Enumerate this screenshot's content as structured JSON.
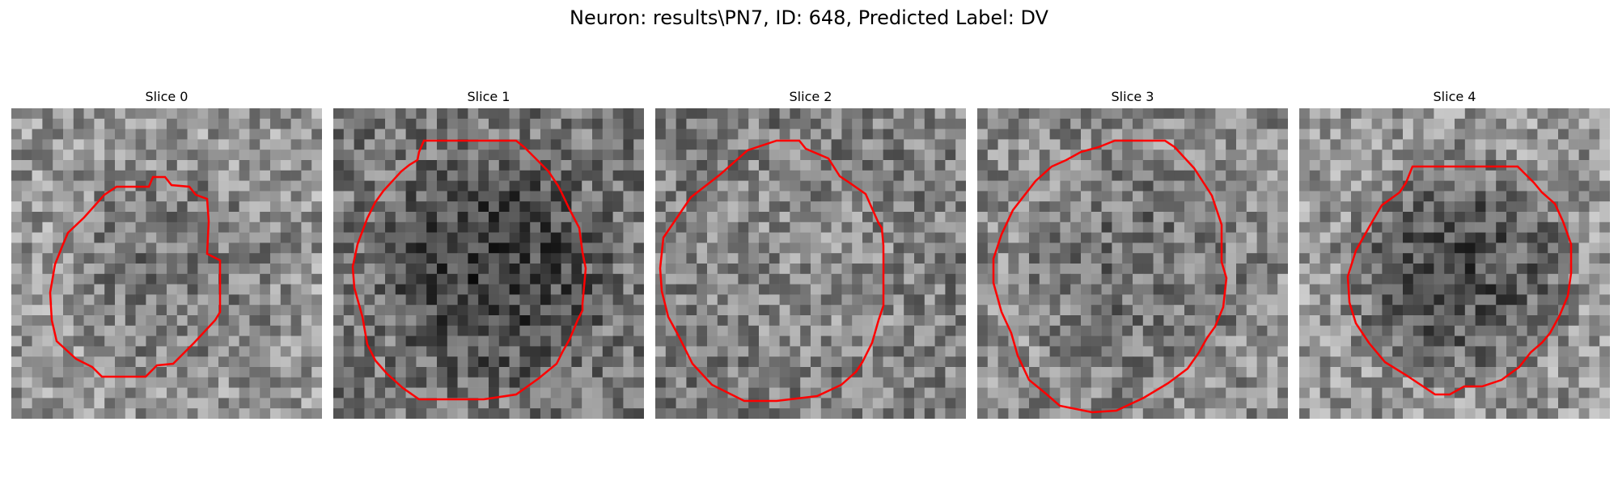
{
  "figure": {
    "title": "Neuron: results\\PN7, ID: 648, Predicted Label: DV"
  },
  "colors": {
    "contour": "#ff0000",
    "background": "#ffffff"
  },
  "panels": [
    {
      "title": "Slice 0",
      "seed": 11,
      "base_gray": 150,
      "center_gray": 118,
      "contour": [
        [
          175,
          85
        ],
        [
          190,
          85
        ],
        [
          198,
          95
        ],
        [
          220,
          97
        ],
        [
          228,
          107
        ],
        [
          242,
          112
        ],
        [
          244,
          140
        ],
        [
          242,
          180
        ],
        [
          258,
          188
        ],
        [
          258,
          252
        ],
        [
          252,
          262
        ],
        [
          226,
          290
        ],
        [
          200,
          316
        ],
        [
          180,
          318
        ],
        [
          166,
          332
        ],
        [
          132,
          332
        ],
        [
          112,
          332
        ],
        [
          100,
          320
        ],
        [
          80,
          310
        ],
        [
          56,
          288
        ],
        [
          50,
          262
        ],
        [
          48,
          228
        ],
        [
          54,
          193
        ],
        [
          64,
          168
        ],
        [
          70,
          154
        ],
        [
          90,
          135
        ],
        [
          115,
          107
        ],
        [
          130,
          97
        ],
        [
          170,
          97
        ]
      ]
    },
    {
      "title": "Slice 1",
      "seed": 23,
      "base_gray": 118,
      "center_gray": 62,
      "contour": [
        [
          112,
          40
        ],
        [
          226,
          40
        ],
        [
          236,
          48
        ],
        [
          256,
          68
        ],
        [
          266,
          78
        ],
        [
          278,
          96
        ],
        [
          282,
          104
        ],
        [
          292,
          125
        ],
        [
          304,
          148
        ],
        [
          308,
          178
        ],
        [
          312,
          198
        ],
        [
          308,
          242
        ],
        [
          308,
          250
        ],
        [
          302,
          262
        ],
        [
          292,
          286
        ],
        [
          284,
          300
        ],
        [
          276,
          316
        ],
        [
          254,
          334
        ],
        [
          226,
          354
        ],
        [
          186,
          360
        ],
        [
          146,
          360
        ],
        [
          106,
          360
        ],
        [
          86,
          346
        ],
        [
          66,
          328
        ],
        [
          52,
          312
        ],
        [
          42,
          292
        ],
        [
          36,
          258
        ],
        [
          26,
          222
        ],
        [
          24,
          196
        ],
        [
          30,
          168
        ],
        [
          42,
          136
        ],
        [
          52,
          116
        ],
        [
          62,
          102
        ],
        [
          84,
          78
        ],
        [
          94,
          70
        ],
        [
          104,
          64
        ],
        [
          106,
          54
        ]
      ]
    },
    {
      "title": "Slice 2",
      "seed": 37,
      "base_gray": 126,
      "center_gray": 140,
      "contour": [
        [
          150,
          40
        ],
        [
          178,
          40
        ],
        [
          186,
          50
        ],
        [
          214,
          62
        ],
        [
          228,
          84
        ],
        [
          240,
          92
        ],
        [
          260,
          106
        ],
        [
          276,
          142
        ],
        [
          280,
          148
        ],
        [
          282,
          170
        ],
        [
          282,
          210
        ],
        [
          282,
          244
        ],
        [
          276,
          262
        ],
        [
          268,
          290
        ],
        [
          256,
          314
        ],
        [
          248,
          326
        ],
        [
          230,
          342
        ],
        [
          200,
          356
        ],
        [
          150,
          362
        ],
        [
          110,
          362
        ],
        [
          70,
          342
        ],
        [
          46,
          316
        ],
        [
          28,
          280
        ],
        [
          16,
          258
        ],
        [
          8,
          226
        ],
        [
          6,
          198
        ],
        [
          10,
          160
        ],
        [
          44,
          110
        ],
        [
          80,
          82
        ],
        [
          114,
          52
        ]
      ]
    },
    {
      "title": "Slice 3",
      "seed": 49,
      "base_gray": 140,
      "center_gray": 112,
      "contour": [
        [
          170,
          40
        ],
        [
          232,
          40
        ],
        [
          244,
          48
        ],
        [
          268,
          74
        ],
        [
          290,
          108
        ],
        [
          294,
          120
        ],
        [
          302,
          144
        ],
        [
          302,
          190
        ],
        [
          308,
          210
        ],
        [
          304,
          246
        ],
        [
          294,
          270
        ],
        [
          284,
          284
        ],
        [
          274,
          302
        ],
        [
          260,
          322
        ],
        [
          236,
          340
        ],
        [
          206,
          358
        ],
        [
          172,
          374
        ],
        [
          142,
          376
        ],
        [
          102,
          368
        ],
        [
          86,
          354
        ],
        [
          64,
          336
        ],
        [
          50,
          306
        ],
        [
          42,
          278
        ],
        [
          30,
          252
        ],
        [
          20,
          216
        ],
        [
          20,
          186
        ],
        [
          30,
          156
        ],
        [
          44,
          126
        ],
        [
          72,
          90
        ],
        [
          92,
          72
        ],
        [
          110,
          64
        ],
        [
          128,
          54
        ],
        [
          150,
          48
        ]
      ]
    },
    {
      "title": "Slice 4",
      "seed": 61,
      "base_gray": 150,
      "center_gray": 78,
      "contour": [
        [
          140,
          72
        ],
        [
          270,
          72
        ],
        [
          278,
          80
        ],
        [
          290,
          92
        ],
        [
          300,
          104
        ],
        [
          316,
          118
        ],
        [
          326,
          140
        ],
        [
          336,
          168
        ],
        [
          336,
          204
        ],
        [
          332,
          232
        ],
        [
          322,
          256
        ],
        [
          310,
          278
        ],
        [
          300,
          290
        ],
        [
          286,
          302
        ],
        [
          272,
          320
        ],
        [
          250,
          336
        ],
        [
          226,
          344
        ],
        [
          204,
          344
        ],
        [
          186,
          354
        ],
        [
          168,
          354
        ],
        [
          150,
          342
        ],
        [
          132,
          330
        ],
        [
          106,
          314
        ],
        [
          86,
          290
        ],
        [
          70,
          266
        ],
        [
          62,
          240
        ],
        [
          60,
          208
        ],
        [
          70,
          176
        ],
        [
          88,
          144
        ],
        [
          102,
          120
        ],
        [
          124,
          104
        ],
        [
          132,
          92
        ]
      ]
    }
  ]
}
